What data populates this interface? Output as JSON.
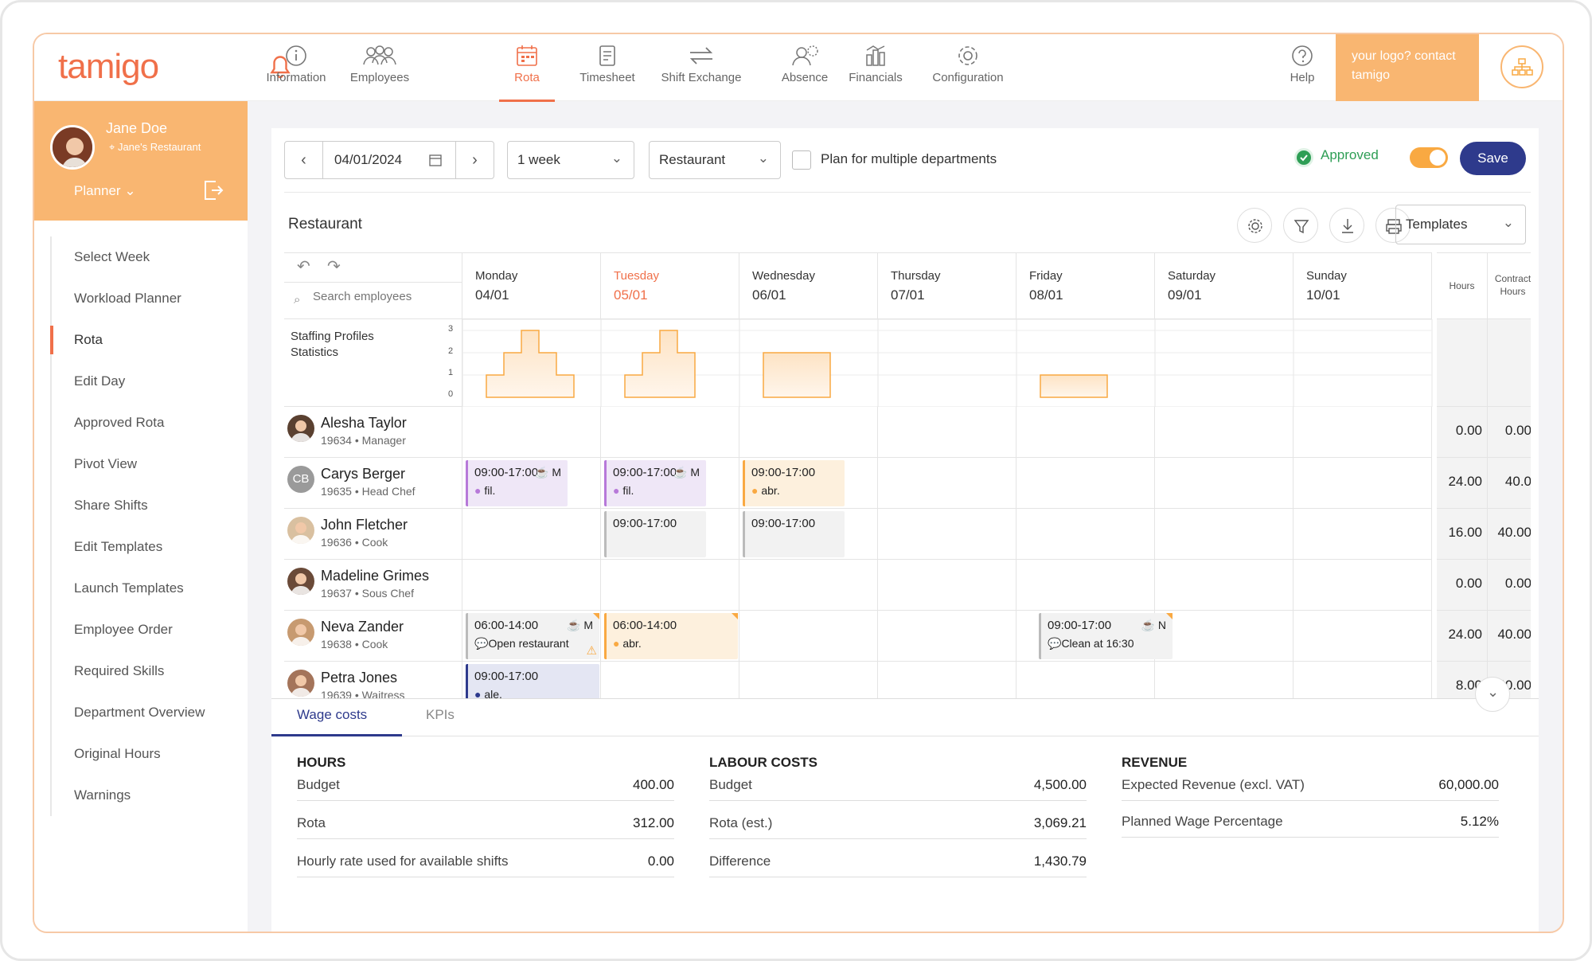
{
  "app": {
    "logo": "tamigo",
    "logo_box": "your logo? contact tamigo"
  },
  "nav": [
    {
      "label": "Information",
      "icon": "info-icon"
    },
    {
      "label": "Employees",
      "icon": "employees-icon"
    },
    {
      "label": "Rota",
      "icon": "calendar-icon",
      "active": true
    },
    {
      "label": "Timesheet",
      "icon": "timesheet-icon"
    },
    {
      "label": "Shift Exchange",
      "icon": "exchange-icon"
    },
    {
      "label": "Absence",
      "icon": "absence-icon"
    },
    {
      "label": "Financials",
      "icon": "financials-icon"
    },
    {
      "label": "Configuration",
      "icon": "gear-icon"
    },
    {
      "label": "Help",
      "icon": "help-icon"
    }
  ],
  "profile": {
    "name": "Jane Doe",
    "location": "Jane's Restaurant",
    "role": "Planner"
  },
  "menu": [
    "Select Week",
    "Workload Planner",
    "Rota",
    "Edit Day",
    "Approved Rota",
    "Pivot View",
    "Share Shifts",
    "Edit Templates",
    "Launch Templates",
    "Employee Order",
    "Required Skills",
    "Department Overview",
    "Original Hours",
    "Warnings"
  ],
  "toolbar": {
    "date": "04/01/2024",
    "period": "1 week",
    "department": "Restaurant",
    "multi_dept": "Plan for multiple departments",
    "approved": "Approved",
    "save": "Save"
  },
  "section": {
    "title": "Restaurant",
    "templates": "Templates"
  },
  "grid": {
    "search_placeholder": "Search employees",
    "staffing_label": "Staffing Profiles Statistics",
    "y_ticks": [
      "3",
      "2",
      "1",
      "0"
    ],
    "hours_head": "Hours",
    "contract_head": "Contract Hours",
    "days": [
      {
        "name": "Monday",
        "date": "04/01"
      },
      {
        "name": "Tuesday",
        "date": "05/01",
        "today": true
      },
      {
        "name": "Wednesday",
        "date": "06/01"
      },
      {
        "name": "Thursday",
        "date": "07/01"
      },
      {
        "name": "Friday",
        "date": "08/01"
      },
      {
        "name": "Saturday",
        "date": "09/01"
      },
      {
        "name": "Sunday",
        "date": "10/01"
      }
    ],
    "employees": [
      {
        "name": "Alesha Taylor",
        "sub": "19634 • Manager",
        "hours": "0.00",
        "contract": "0.00"
      },
      {
        "name": "Carys Berger",
        "sub": "19635 • Head Chef",
        "hours": "24.00",
        "contract": "40.0",
        "initials": "CB"
      },
      {
        "name": "John Fletcher",
        "sub": "19636 • Cook",
        "hours": "16.00",
        "contract": "40.00"
      },
      {
        "name": "Madeline Grimes",
        "sub": "19637 • Sous Chef",
        "hours": "0.00",
        "contract": "0.00"
      },
      {
        "name": "Neva Zander",
        "sub": "19638 • Cook",
        "hours": "24.00",
        "contract": "40.00"
      },
      {
        "name": "Petra Jones",
        "sub": "19639 • Waitress",
        "hours": "8.00",
        "contract": "40.00"
      }
    ],
    "shifts": {
      "s1": {
        "time": "09:00-17:00",
        "tag": "M",
        "note": "fil."
      },
      "s2": {
        "time": "09:00-17:00",
        "tag": "M",
        "note": "fil."
      },
      "s3": {
        "time": "09:00-17:00",
        "note": "abr."
      },
      "s4": {
        "time": "09:00-17:00"
      },
      "s5": {
        "time": "09:00-17:00"
      },
      "s6": {
        "time": "06:00-14:00",
        "tag": "M",
        "note": "Open restaurant"
      },
      "s7": {
        "time": "06:00-14:00",
        "note": "abr."
      },
      "s8": {
        "time": "09:00-17:00",
        "tag": "N",
        "note": "Clean at 16:30"
      },
      "s9": {
        "time": "09:00-17:00",
        "note": "ale."
      }
    },
    "staffing_chart": {
      "type": "area",
      "ylim": [
        0,
        3
      ],
      "days": {
        "Monday": [
          1,
          2,
          3,
          2,
          1
        ],
        "Tuesday": [
          1,
          2,
          3,
          2
        ],
        "Wednesday": [
          2
        ],
        "Friday": [
          1
        ]
      }
    }
  },
  "bottom": {
    "tabs": [
      "Wage costs",
      "KPIs"
    ],
    "hours": {
      "title": "HOURS",
      "rows": [
        [
          "Budget",
          "400.00"
        ],
        [
          "Rota",
          "312.00"
        ],
        [
          "Hourly rate used for available shifts",
          "0.00"
        ]
      ]
    },
    "labour": {
      "title": "LABOUR COSTS",
      "rows": [
        [
          "Budget",
          "4,500.00"
        ],
        [
          "Rota (est.)",
          "3,069.21"
        ],
        [
          "Difference",
          "1,430.79"
        ]
      ]
    },
    "revenue": {
      "title": "REVENUE",
      "rows": [
        [
          "Expected Revenue (excl. VAT)",
          "60,000.00"
        ],
        [
          "Planned Wage Percentage",
          "5.12%"
        ]
      ]
    }
  },
  "colors": {
    "accent": "#f0704a",
    "orange": "#f9b671",
    "navy": "#2e3a8c",
    "purple": "#b779d9",
    "green": "#2e9e55"
  }
}
